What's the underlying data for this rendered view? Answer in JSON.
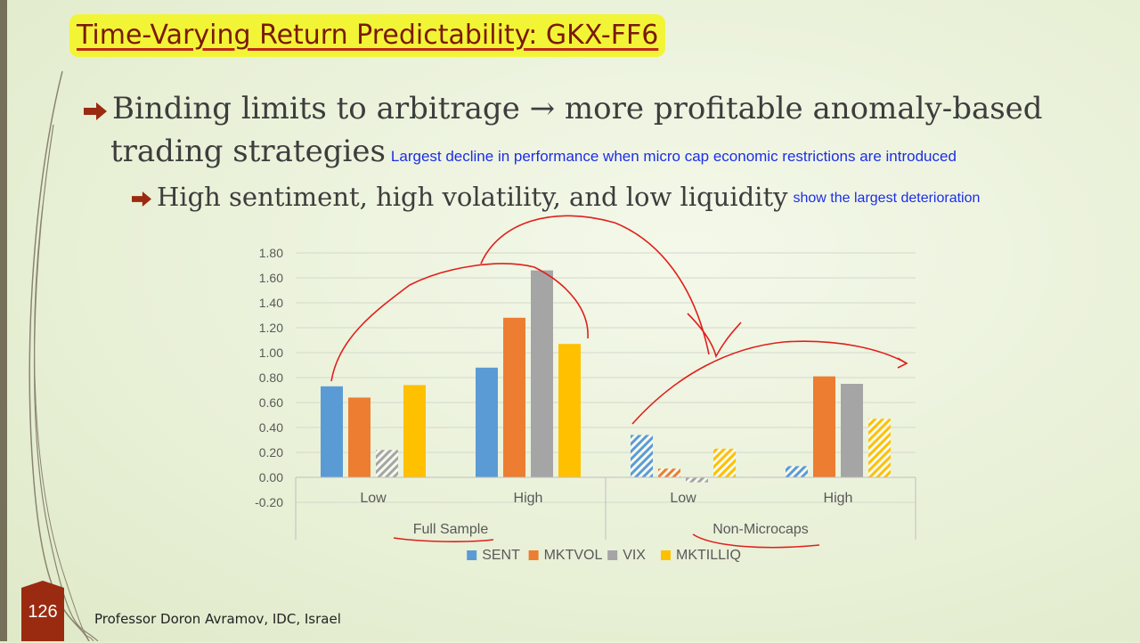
{
  "slide": {
    "title": "Time-Varying Return Predictability: GKX-FF6",
    "bullet1_line1": "Binding limits to arbitrage → more profitable anomaly-based",
    "bullet1_line2": "trading strategies",
    "note1": "Largest decline in performance when micro cap economic restrictions are introduced",
    "bullet2": "High sentiment, high volatility, and low liquidity",
    "note2": "show the largest deterioration",
    "page_number": "126",
    "footer": "Professor Doron Avramov, IDC, Israel",
    "bullet_icon": "right-arrow-icon"
  },
  "chart_data": {
    "type": "bar",
    "title": "",
    "groups": [
      "Full Sample",
      "Non-Microcaps"
    ],
    "categories": [
      "Low",
      "High",
      "Low",
      "High"
    ],
    "category_group": [
      0,
      0,
      1,
      1
    ],
    "y_ticks": [
      "1.80",
      "1.60",
      "1.40",
      "1.20",
      "1.00",
      "0.80",
      "0.60",
      "0.40",
      "0.20",
      "0.00",
      "-0.20"
    ],
    "ylim": [
      -0.2,
      1.8
    ],
    "grid": true,
    "legend_position": "bottom",
    "series": [
      {
        "name": "SENT",
        "color": "#5b9bd5",
        "values": [
          0.73,
          0.88,
          0.34,
          0.09
        ],
        "hatched": [
          false,
          false,
          true,
          true
        ]
      },
      {
        "name": "MKTVOL",
        "color": "#ed7d31",
        "values": [
          0.64,
          1.28,
          0.07,
          0.81
        ],
        "hatched": [
          false,
          false,
          true,
          false
        ]
      },
      {
        "name": "VIX",
        "color": "#a5a5a5",
        "values": [
          0.22,
          1.66,
          -0.04,
          0.75
        ],
        "hatched": [
          true,
          false,
          true,
          false
        ]
      },
      {
        "name": "MKTILLIQ",
        "color": "#ffc000",
        "values": [
          0.74,
          1.07,
          0.23,
          0.47
        ],
        "hatched": [
          false,
          false,
          true,
          true
        ]
      }
    ]
  }
}
